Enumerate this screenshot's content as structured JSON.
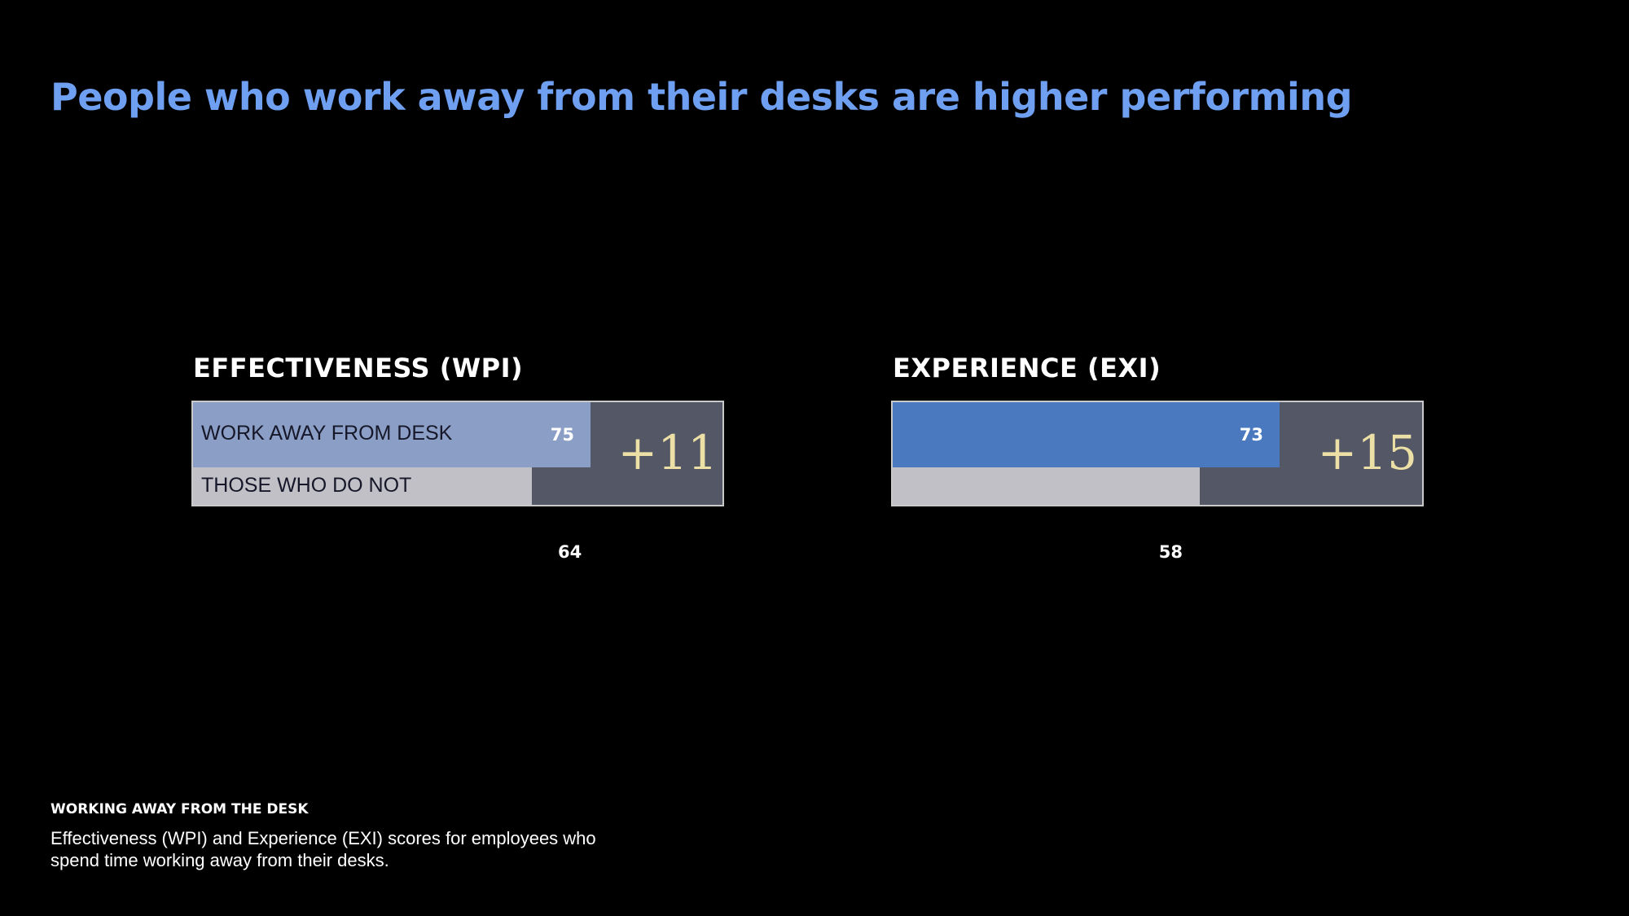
{
  "title": "People who work away from their desks are higher performing",
  "colors": {
    "background": "#000000",
    "title": "#6e9ff0",
    "track": "#545765",
    "difference": "#ede0a6",
    "bar_label": "#16182a"
  },
  "chart_data": [
    {
      "type": "bar",
      "orientation": "horizontal",
      "title": "EFFECTIVENESS (WPI)",
      "xlim": [
        0,
        100
      ],
      "categories": [
        "WORK AWAY FROM DESK",
        "THOSE WHO DO NOT"
      ],
      "values": [
        75,
        64
      ],
      "colors": [
        "#8b9ec5",
        "#c1c0c6"
      ],
      "difference_label": "+11"
    },
    {
      "type": "bar",
      "orientation": "horizontal",
      "title": "EXPERIENCE (EXI)",
      "xlim": [
        0,
        100
      ],
      "categories": [
        "",
        ""
      ],
      "values": [
        73,
        58
      ],
      "colors": [
        "#4a79c0",
        "#c1c0c6"
      ],
      "difference_label": "+15"
    }
  ],
  "footnote": {
    "heading": "WORKING AWAY FROM THE DESK",
    "text": "Effectiveness (WPI) and Experience (EXI) scores for employees who spend time working away from their desks."
  }
}
